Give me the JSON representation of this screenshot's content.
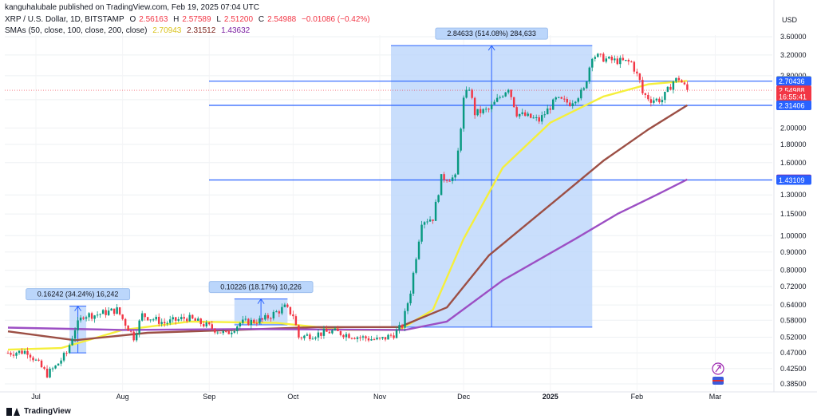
{
  "header": {
    "publisher_line": "kanguhalubale published on TradingView.com, Feb 19, 2025 07:04 UTC",
    "symbol": "XRP / U.S. Dollar, 1D, BITSTAMP",
    "ohlc": {
      "o_label": "O",
      "o": "2.56163",
      "h_label": "H",
      "h": "2.57589",
      "l_label": "L",
      "l": "2.51200",
      "c_label": "C",
      "c": "2.54988",
      "change": "−0.01086 (−0.42%)"
    },
    "sma_label": "SMAs (50, close, 100, close, 200, close)",
    "sma_values": [
      "2.70943",
      "2.31512",
      "1.43632"
    ]
  },
  "footer": {
    "brand": "TradingView"
  },
  "colors": {
    "up": "#089981",
    "down": "#f23645",
    "sma50": "#f5ef3b",
    "sma100": "#9c4f45",
    "sma200": "#9c4fc4",
    "hline": "#2962ff",
    "range_fill": "#bbd6fb",
    "price_line": "#f23645"
  },
  "chart_data": {
    "type": "candlestick",
    "currency_label": "USD",
    "y_scale": "log",
    "y_ticks": [
      "3.60000",
      "3.20000",
      "2.80000",
      "2.40000",
      "2.00000",
      "1.80000",
      "1.60000",
      "1.30000",
      "1.15000",
      "1.00000",
      "0.90000",
      "0.80000",
      "0.72000",
      "0.64000",
      "0.58000",
      "0.52000",
      "0.47000",
      "0.42500",
      "0.38500"
    ],
    "x_ticks": [
      "Jul",
      "Aug",
      "Sep",
      "Oct",
      "Nov",
      "Dec",
      "2025",
      "Feb",
      "Mar"
    ],
    "price_labels": [
      {
        "text": "2.70943",
        "price": 2.70943,
        "color": "#f5ef3b",
        "text_color": "#131722"
      },
      {
        "text": "2.70436",
        "price": 2.70436,
        "color": "#2962ff",
        "text_color": "#ffffff"
      },
      {
        "text": "2.54988",
        "price": 2.54988,
        "color": "#f23645",
        "text_color": "#ffffff"
      },
      {
        "text": "16:55:41",
        "price": 2.45,
        "color": "#f23645",
        "text_color": "#ffffff"
      },
      {
        "text": "2.31512",
        "price": 2.31512,
        "color": "#7a1e16",
        "text_color": "#ffffff"
      },
      {
        "text": "2.31406",
        "price": 2.31406,
        "color": "#2962ff",
        "text_color": "#ffffff"
      },
      {
        "text": "1.43632",
        "price": 1.43632,
        "color": "#7b1fa2",
        "text_color": "#ffffff"
      },
      {
        "text": "1.43109",
        "price": 1.43109,
        "color": "#2962ff",
        "text_color": "#ffffff"
      }
    ],
    "horizontal_levels": [
      2.70436,
      2.31406,
      1.43109
    ],
    "range_measures": [
      {
        "label": "0.16242 (34.24%) 16,242",
        "start": "2024-07-13",
        "end": "2024-07-19",
        "low": 0.47,
        "high": 0.635
      },
      {
        "label": "0.10226 (18.17%) 10,226",
        "start": "2024-09-10",
        "end": "2024-09-29",
        "low": 0.563,
        "high": 0.665
      },
      {
        "label": "2.84633 (514.08%) 284,633",
        "start": "2024-11-05",
        "end": "2025-01-16",
        "low": 0.555,
        "high": 3.4
      }
    ],
    "sma_series": [
      {
        "name": "SMA 50",
        "color": "#f5ef3b",
        "points": [
          [
            "2024-06-21",
            0.48
          ],
          [
            "2024-07-10",
            0.485
          ],
          [
            "2024-08-01",
            0.545
          ],
          [
            "2024-08-25",
            0.575
          ],
          [
            "2024-09-25",
            0.57
          ],
          [
            "2024-10-20",
            0.545
          ],
          [
            "2024-11-08",
            0.545
          ],
          [
            "2024-11-20",
            0.62
          ],
          [
            "2024-12-01",
            0.98
          ],
          [
            "2024-12-15",
            1.55
          ],
          [
            "2025-01-01",
            2.07
          ],
          [
            "2025-01-20",
            2.45
          ],
          [
            "2025-02-05",
            2.65
          ],
          [
            "2025-02-19",
            2.71
          ]
        ]
      },
      {
        "name": "SMA 100",
        "color": "#9c4f45",
        "points": [
          [
            "2024-06-21",
            0.54
          ],
          [
            "2024-07-15",
            0.51
          ],
          [
            "2024-08-10",
            0.535
          ],
          [
            "2024-09-10",
            0.545
          ],
          [
            "2024-10-10",
            0.555
          ],
          [
            "2024-11-08",
            0.555
          ],
          [
            "2024-11-25",
            0.63
          ],
          [
            "2024-12-10",
            0.88
          ],
          [
            "2025-01-01",
            1.22
          ],
          [
            "2025-01-20",
            1.62
          ],
          [
            "2025-02-05",
            1.98
          ],
          [
            "2025-02-19",
            2.315
          ]
        ]
      },
      {
        "name": "SMA 200",
        "color": "#9c4fc4",
        "points": [
          [
            "2024-06-21",
            0.553
          ],
          [
            "2024-08-01",
            0.545
          ],
          [
            "2024-09-15",
            0.548
          ],
          [
            "2024-11-10",
            0.545
          ],
          [
            "2024-11-25",
            0.575
          ],
          [
            "2024-12-15",
            0.75
          ],
          [
            "2025-01-10",
            0.98
          ],
          [
            "2025-01-25",
            1.15
          ],
          [
            "2025-02-08",
            1.3
          ],
          [
            "2025-02-19",
            1.436
          ]
        ]
      }
    ],
    "price_anchors": [
      [
        "2024-06-21",
        0.47
      ],
      [
        "2024-06-28",
        0.475
      ],
      [
        "2024-07-05",
        0.41
      ],
      [
        "2024-07-08",
        0.43
      ],
      [
        "2024-07-12",
        0.47
      ],
      [
        "2024-07-15",
        0.55
      ],
      [
        "2024-07-18",
        0.6
      ],
      [
        "2024-07-22",
        0.6
      ],
      [
        "2024-07-30",
        0.62
      ],
      [
        "2024-08-05",
        0.52
      ],
      [
        "2024-08-08",
        0.6
      ],
      [
        "2024-08-16",
        0.57
      ],
      [
        "2024-08-24",
        0.59
      ],
      [
        "2024-08-30",
        0.565
      ],
      [
        "2024-09-07",
        0.53
      ],
      [
        "2024-09-12",
        0.57
      ],
      [
        "2024-09-20",
        0.58
      ],
      [
        "2024-09-28",
        0.63
      ],
      [
        "2024-10-01",
        0.6
      ],
      [
        "2024-10-03",
        0.52
      ],
      [
        "2024-10-15",
        0.54
      ],
      [
        "2024-10-25",
        0.52
      ],
      [
        "2024-11-01",
        0.51
      ],
      [
        "2024-11-06",
        0.53
      ],
      [
        "2024-11-09",
        0.56
      ],
      [
        "2024-11-12",
        0.7
      ],
      [
        "2024-11-16",
        1.1
      ],
      [
        "2024-11-20",
        1.12
      ],
      [
        "2024-11-23",
        1.45
      ],
      [
        "2024-11-28",
        1.45
      ],
      [
        "2024-12-01",
        2.4
      ],
      [
        "2024-12-03",
        2.6
      ],
      [
        "2024-12-05",
        2.2
      ],
      [
        "2024-12-10",
        2.25
      ],
      [
        "2024-12-17",
        2.6
      ],
      [
        "2024-12-20",
        2.2
      ],
      [
        "2024-12-28",
        2.1
      ],
      [
        "2025-01-03",
        2.4
      ],
      [
        "2025-01-08",
        2.35
      ],
      [
        "2025-01-13",
        2.55
      ],
      [
        "2025-01-16",
        3.2
      ],
      [
        "2025-01-22",
        3.1
      ],
      [
        "2025-01-30",
        3.05
      ],
      [
        "2025-02-02",
        2.7
      ],
      [
        "2025-02-03",
        2.5
      ],
      [
        "2025-02-06",
        2.4
      ],
      [
        "2025-02-10",
        2.4
      ],
      [
        "2025-02-14",
        2.7
      ],
      [
        "2025-02-16",
        2.75
      ],
      [
        "2025-02-19",
        2.55
      ]
    ]
  }
}
